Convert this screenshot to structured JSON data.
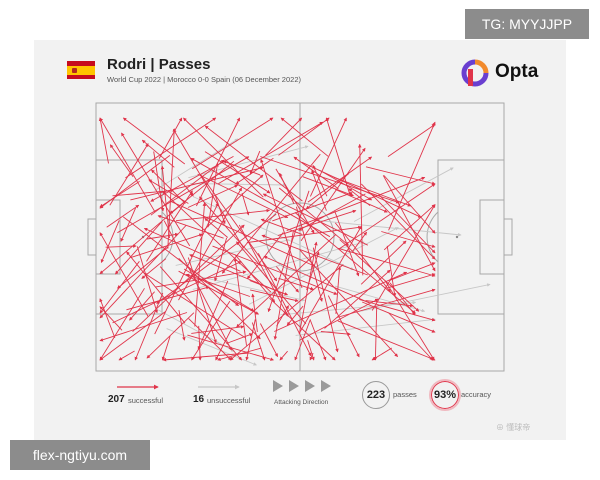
{
  "header": {
    "title": "Rodri | Passes",
    "subtitle": "World Cup 2022 | Morocco 0-0 Spain (06 December 2022)",
    "brand": "Opta",
    "flag_icon": "spain-flag-icon"
  },
  "overlays": {
    "tg_badge": "TG: MYYJJPP",
    "site_badge": "flex-ngtiyu.com",
    "watermark": "⊕ 懂球帝"
  },
  "legend": {
    "successful_count": "207",
    "successful_label": "successful",
    "unsuccessful_count": "16",
    "unsuccessful_label": "unsuccessful",
    "direction_label": "Attacking Direction",
    "passes_value": "223",
    "passes_label": "passes",
    "accuracy_value": "93%",
    "accuracy_label": "accuracy"
  },
  "colors": {
    "successful": "#e0344a",
    "unsuccessful": "#c7c7c7",
    "pitch_lines": "#a8a8a8",
    "card_bg": "#f2f2f2"
  },
  "chart_data": {
    "type": "scatter",
    "title": "Rodri | Passes",
    "attacking_direction": "left-to-right",
    "series": [
      {
        "name": "successful",
        "count": 207
      },
      {
        "name": "unsuccessful",
        "count": 16
      }
    ],
    "total_passes": 223,
    "accuracy_pct": 93
  }
}
